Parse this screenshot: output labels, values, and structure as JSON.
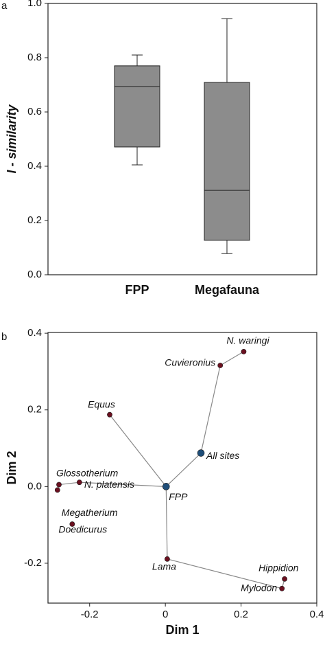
{
  "chart_data": [
    {
      "type": "box",
      "panel_label": "a",
      "ylabel": "I - similarity",
      "categories": [
        "FPP",
        "Megafauna"
      ],
      "boxes": [
        {
          "low": 0.405,
          "q1": 0.471,
          "median": 0.694,
          "q3": 0.77,
          "high": 0.81
        },
        {
          "low": 0.078,
          "q1": 0.127,
          "median": 0.311,
          "q3": 0.709,
          "high": 0.944
        }
      ],
      "color": "#8c8c8c",
      "ylim": [
        0,
        1
      ],
      "yticks": [
        {
          "value": 0,
          "label": "0.0"
        },
        0.2,
        0.4,
        0.6,
        0.8,
        {
          "value": 1,
          "label": "1.0"
        }
      ]
    },
    {
      "type": "scatter",
      "panel_label": "b",
      "xlabel": "Dim 1",
      "ylabel": "Dim 2",
      "labels": [
        "N. waringi",
        "Cuvieronius",
        "All sites",
        "Equus",
        "FPP",
        "Glossotherium",
        "N. platensis",
        "Megatherium",
        "Doedicurus",
        "Lama",
        "Hippidion",
        "Mylodon"
      ],
      "x": [
        0.207,
        0.145,
        0.094,
        -0.147,
        0.002,
        -0.281,
        -0.227,
        -0.285,
        -0.246,
        0.005,
        0.315,
        0.308
      ],
      "y": [
        0.352,
        0.316,
        0.0875,
        0.1875,
        0.0,
        0.005,
        0.011,
        -0.009,
        -0.098,
        -0.189,
        -0.241,
        -0.266
      ],
      "colors": [
        "#6b1020",
        "#6b1020",
        "#1f4e79",
        "#6b1020",
        "#1f4e79",
        "#6b1020",
        "#6b1020",
        "#6b1020",
        "#6b1020",
        "#6b1020",
        "#6b1020",
        "#6b1020"
      ],
      "xlim": [
        -0.31,
        0.4
      ],
      "xticks": [
        -0.2,
        0,
        0.2,
        0.4
      ],
      "ylim": [
        -0.304,
        0.402
      ],
      "yticks": [
        -0.2,
        {
          "value": 0,
          "label": "0.0"
        },
        0.2,
        0.4
      ]
    }
  ]
}
